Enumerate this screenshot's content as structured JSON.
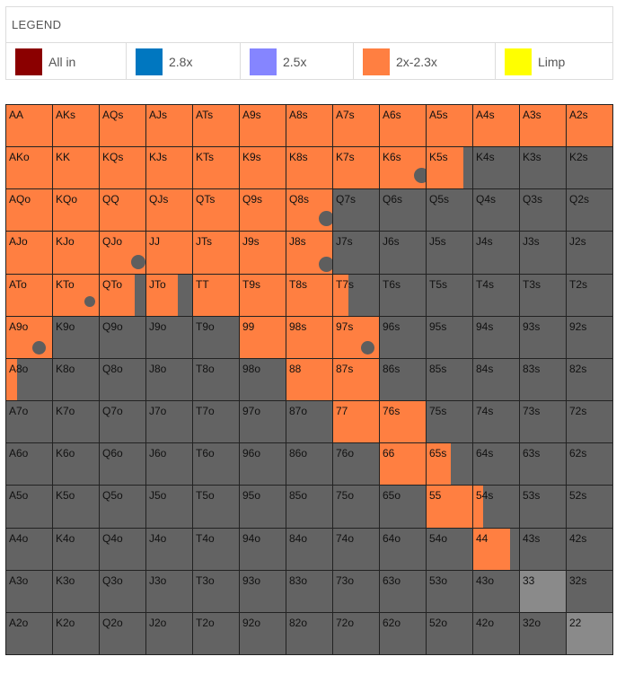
{
  "legend": {
    "title": "LEGEND",
    "items": [
      {
        "label": "All in",
        "color": "#8b0000"
      },
      {
        "label": "2.8x",
        "color": "#0077c0"
      },
      {
        "label": "2.5x",
        "color": "#8585ff"
      },
      {
        "label": "2x-2.3x",
        "color": "#ff7f41"
      },
      {
        "label": "Limp",
        "color": "#ffff00"
      }
    ]
  },
  "colors": {
    "raise": "#ff7f41",
    "fold": "#636363",
    "pair_fold": "#8a8a8a",
    "border": "#222222",
    "dot": "#5e5e5e"
  },
  "grid": {
    "rows": [
      [
        "AA",
        "AKs",
        "AQs",
        "AJs",
        "ATs",
        "A9s",
        "A8s",
        "A7s",
        "A6s",
        "A5s",
        "A4s",
        "A3s",
        "A2s"
      ],
      [
        "AKo",
        "KK",
        "KQs",
        "KJs",
        "KTs",
        "K9s",
        "K8s",
        "K7s",
        "K6s",
        "K5s",
        "K4s",
        "K3s",
        "K2s"
      ],
      [
        "AQo",
        "KQo",
        "QQ",
        "QJs",
        "QTs",
        "Q9s",
        "Q8s",
        "Q7s",
        "Q6s",
        "Q5s",
        "Q4s",
        "Q3s",
        "Q2s"
      ],
      [
        "AJo",
        "KJo",
        "QJo",
        "JJ",
        "JTs",
        "J9s",
        "J8s",
        "J7s",
        "J6s",
        "J5s",
        "J4s",
        "J3s",
        "J2s"
      ],
      [
        "ATo",
        "KTo",
        "QTo",
        "JTo",
        "TT",
        "T9s",
        "T8s",
        "T7s",
        "T6s",
        "T5s",
        "T4s",
        "T3s",
        "T2s"
      ],
      [
        "A9o",
        "K9o",
        "Q9o",
        "J9o",
        "T9o",
        "99",
        "98s",
        "97s",
        "96s",
        "95s",
        "94s",
        "93s",
        "92s"
      ],
      [
        "A8o",
        "K8o",
        "Q8o",
        "J8o",
        "T8o",
        "98o",
        "88",
        "87s",
        "86s",
        "85s",
        "84s",
        "83s",
        "82s"
      ],
      [
        "A7o",
        "K7o",
        "Q7o",
        "J7o",
        "T7o",
        "97o",
        "87o",
        "77",
        "76s",
        "75s",
        "74s",
        "73s",
        "72s"
      ],
      [
        "A6o",
        "K6o",
        "Q6o",
        "J6o",
        "T6o",
        "96o",
        "86o",
        "76o",
        "66",
        "65s",
        "64s",
        "63s",
        "62s"
      ],
      [
        "A5o",
        "K5o",
        "Q5o",
        "J5o",
        "T5o",
        "95o",
        "85o",
        "75o",
        "65o",
        "55",
        "54s",
        "53s",
        "52s"
      ],
      [
        "A4o",
        "K4o",
        "Q4o",
        "J4o",
        "T4o",
        "94o",
        "84o",
        "74o",
        "64o",
        "54o",
        "44",
        "43s",
        "42s"
      ],
      [
        "A3o",
        "K3o",
        "Q3o",
        "J3o",
        "T3o",
        "93o",
        "83o",
        "73o",
        "63o",
        "53o",
        "43o",
        "33",
        "32s"
      ],
      [
        "A2o",
        "K2o",
        "Q2o",
        "J2o",
        "T2o",
        "92o",
        "82o",
        "72o",
        "62o",
        "52o",
        "42o",
        "32o",
        "22"
      ]
    ],
    "raise_fraction": {
      "AA": 1,
      "AKs": 1,
      "AQs": 1,
      "AJs": 1,
      "ATs": 1,
      "A9s": 1,
      "A8s": 1,
      "A7s": 1,
      "A6s": 1,
      "A5s": 1,
      "A4s": 1,
      "A3s": 1,
      "A2s": 1,
      "AKo": 1,
      "KK": 1,
      "KQs": 1,
      "KJs": 1,
      "KTs": 1,
      "K9s": 1,
      "K8s": 1,
      "K7s": 1,
      "K6s": 1,
      "K5s": 0.81,
      "AQo": 1,
      "KQo": 1,
      "QQ": 1,
      "QJs": 1,
      "QTs": 1,
      "Q9s": 1,
      "Q8s": 1,
      "AJo": 1,
      "KJo": 1,
      "QJo": 1,
      "JJ": 1,
      "JTs": 1,
      "J9s": 1,
      "J8s": 1,
      "ATo": 1,
      "KTo": 1,
      "QTo": 0.77,
      "JTo": 0.69,
      "TT": 1,
      "T9s": 1,
      "T8s": 1,
      "T7s": 0.33,
      "A9o": 1,
      "99": 1,
      "98s": 1,
      "97s": 1,
      "A8o": 0.23,
      "88": 1,
      "87s": 1,
      "77": 1,
      "76s": 1,
      "66": 1,
      "65s": 0.52,
      "55": 1,
      "54s": 0.21,
      "44": 0.81
    },
    "dots": [
      "K6s",
      "Q8s",
      "QJo",
      "J8s",
      "KTo",
      "A9o",
      "97s"
    ],
    "pair_fold_cells": [
      "33",
      "22"
    ]
  }
}
